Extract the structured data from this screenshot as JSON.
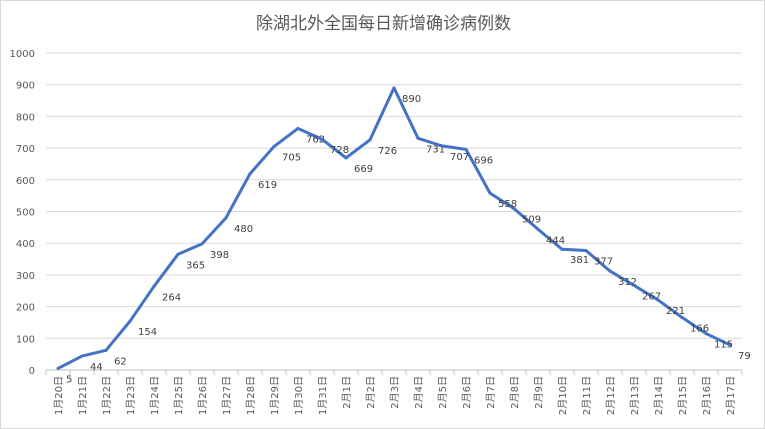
{
  "chart_data": {
    "type": "line",
    "title": "除湖北外全国每日新增确诊病例数",
    "xlabel": "",
    "ylabel": "",
    "ylim": [
      0,
      1000
    ],
    "yticks": [
      0,
      100,
      200,
      300,
      400,
      500,
      600,
      700,
      800,
      900,
      1000
    ],
    "grid": true,
    "legend": "none",
    "color": "#4472C4",
    "categories": [
      "1月20日",
      "1月21日",
      "1月22日",
      "1月23日",
      "1月24日",
      "1月25日",
      "1月26日",
      "1月27日",
      "1月28日",
      "1月29日",
      "1月30日",
      "1月31日",
      "2月1日",
      "2月2日",
      "2月3日",
      "2月4日",
      "2月5日",
      "2月6日",
      "2月7日",
      "2月8日",
      "2月9日",
      "2月10日",
      "2月11日",
      "2月12日",
      "2月13日",
      "2月14日",
      "2月15日",
      "2月16日",
      "2月17日"
    ],
    "values": [
      5,
      44,
      62,
      154,
      264,
      365,
      398,
      480,
      619,
      705,
      762,
      728,
      669,
      726,
      890,
      731,
      707,
      696,
      558,
      509,
      444,
      381,
      377,
      312,
      267,
      221,
      166,
      115,
      79
    ]
  }
}
